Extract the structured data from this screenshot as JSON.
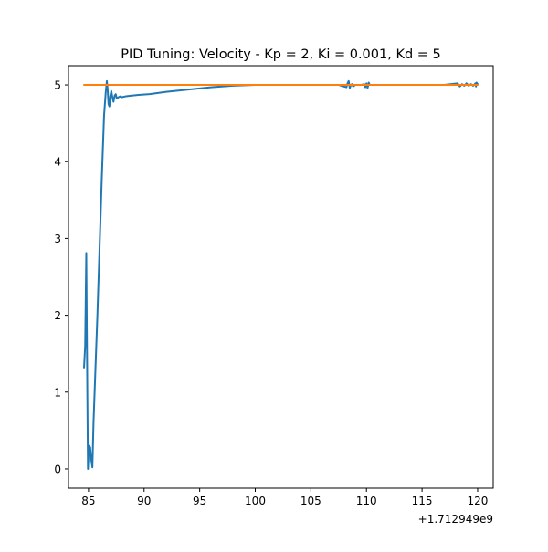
{
  "chart_data": {
    "type": "line",
    "title": "PID Tuning: Velocity - Kp = 2, Ki = 0.001, Kd = 5",
    "xlabel": "",
    "ylabel": "",
    "x_offset_label": "+1.712949e9",
    "xlim": [
      83.2,
      121.4
    ],
    "ylim": [
      -0.25,
      5.25
    ],
    "x_ticks": [
      85,
      90,
      95,
      100,
      105,
      110,
      115,
      120
    ],
    "x_tick_labels": [
      "85",
      "90",
      "95",
      "100",
      "105",
      "110",
      "115",
      "120"
    ],
    "y_ticks": [
      0,
      1,
      2,
      3,
      4,
      5
    ],
    "y_tick_labels": [
      "0",
      "1",
      "2",
      "3",
      "4",
      "5"
    ],
    "grid": false,
    "legend": "none",
    "series": [
      {
        "color": "#1f77b4",
        "x": [
          84.6,
          84.7,
          84.8,
          84.85,
          84.95,
          85.05,
          85.15,
          85.25,
          85.35,
          85.45,
          85.6,
          85.8,
          86.0,
          86.2,
          86.4,
          86.55,
          86.65,
          86.72,
          86.8,
          86.88,
          86.95,
          87.05,
          87.15,
          87.25,
          87.35,
          87.45,
          87.55,
          87.7,
          87.85,
          88.0,
          88.3,
          88.8,
          89.5,
          90.5,
          92,
          94,
          96,
          98,
          100,
          102,
          104,
          106,
          107.5,
          108.2,
          108.3,
          108.4,
          108.5,
          108.6,
          108.7,
          108.8,
          109.0,
          109.5,
          109.8,
          109.9,
          110.0,
          110.1,
          110.2,
          110.3,
          110.5,
          111,
          113,
          115,
          117,
          118.2,
          118.4,
          118.6,
          118.8,
          119.0,
          119.2,
          119.4,
          119.6,
          119.8,
          119.85,
          119.9,
          120.0
        ],
        "y": [
          1.32,
          1.6,
          2.81,
          1.8,
          0.0,
          0.3,
          0.28,
          0.12,
          0.02,
          0.6,
          1.2,
          2.0,
          2.9,
          3.8,
          4.6,
          4.9,
          5.05,
          4.95,
          4.75,
          4.72,
          4.85,
          4.92,
          4.84,
          4.78,
          4.86,
          4.88,
          4.82,
          4.84,
          4.85,
          4.84,
          4.85,
          4.86,
          4.87,
          4.88,
          4.91,
          4.94,
          4.97,
          4.99,
          5.0,
          5.0,
          5.0,
          5.0,
          5.0,
          4.97,
          5.02,
          5.05,
          4.96,
          5.0,
          5.01,
          4.98,
          5.0,
          5.0,
          5.01,
          4.97,
          5.02,
          4.96,
          5.03,
          5.0,
          5.0,
          5.0,
          5.0,
          5.0,
          5.0,
          5.02,
          4.98,
          5.01,
          4.99,
          5.02,
          4.99,
          5.01,
          4.99,
          5.02,
          4.98,
          5.03,
          5.01
        ]
      },
      {
        "color": "#ff7f0e",
        "x": [
          84.6,
          120.0
        ],
        "y": [
          5.0,
          5.0
        ]
      }
    ]
  }
}
